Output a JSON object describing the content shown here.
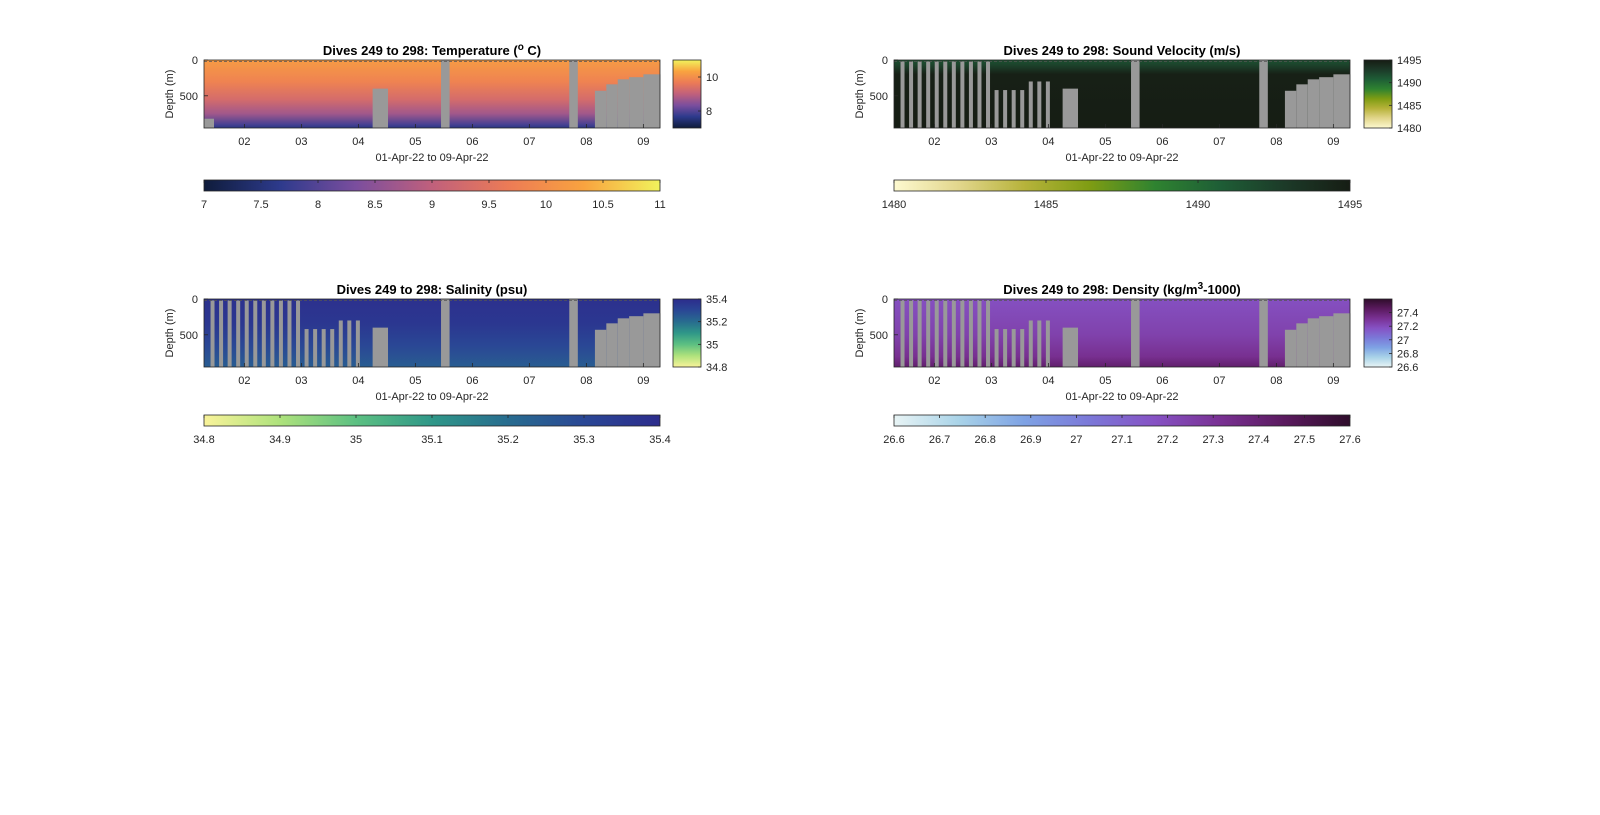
{
  "figure": {
    "background": "#ffffff",
    "mask_color": "#999999"
  },
  "chart_data": [
    {
      "id": "temperature",
      "type": "heatmap",
      "title": "Dives 249 to 298: Temperature (",
      "title_sup": "o",
      "title_tail": " C)",
      "xlabel": "01-Apr-22 to 09-Apr-22",
      "ylabel": "Depth (m)",
      "x_range": [
        "2022-04-01T07:00",
        "2022-04-09T07:00"
      ],
      "x_ticks": [
        "02",
        "03",
        "04",
        "05",
        "06",
        "07",
        "08",
        "09"
      ],
      "y_ticks": [
        0,
        500
      ],
      "ylim": [
        0,
        950
      ],
      "y_reversed": true,
      "colormap": [
        "#0f1c3b",
        "#2d3a8c",
        "#7b4e9e",
        "#c0607c",
        "#ec7b56",
        "#f9a33f",
        "#f1f35c"
      ],
      "clim": [
        7,
        11
      ],
      "colorbar_ticks": [
        "7",
        "7.5",
        "8",
        "8.5",
        "9",
        "9.5",
        "10",
        "10.5",
        "11"
      ],
      "side_colorbar_ticks": [
        "10",
        "8"
      ],
      "values_by_depth": [
        {
          "depth": 0,
          "value": 10.2
        },
        {
          "depth": 300,
          "value": 9.8
        },
        {
          "depth": 550,
          "value": 9.3
        },
        {
          "depth": 750,
          "value": 8.7
        },
        {
          "depth": 900,
          "value": 7.9
        },
        {
          "depth": 950,
          "value": 7.6
        }
      ]
    },
    {
      "id": "sound-velocity",
      "type": "heatmap",
      "title": "Dives 249 to 298: Sound Velocity (m/s)",
      "xlabel": "01-Apr-22 to 09-Apr-22",
      "ylabel": "Depth (m)",
      "x_range": [
        "2022-04-01T07:00",
        "2022-04-09T07:00"
      ],
      "x_ticks": [
        "02",
        "03",
        "04",
        "05",
        "06",
        "07",
        "08",
        "09"
      ],
      "y_ticks": [
        0,
        500
      ],
      "ylim": [
        0,
        950
      ],
      "y_reversed": true,
      "colormap": [
        "#fdf9d0",
        "#e2d68c",
        "#b7b33b",
        "#7f9d13",
        "#2f8330",
        "#1e5e36",
        "#1c3a28",
        "#161d14"
      ],
      "clim": [
        1480,
        1495
      ],
      "colorbar_ticks": [
        "1480",
        "1485",
        "1490",
        "1495"
      ],
      "side_colorbar_ticks": [
        "1495",
        "1490",
        "1485",
        "1480"
      ],
      "values_by_depth": [
        {
          "depth": 0,
          "value": 1491.5
        },
        {
          "depth": 80,
          "value": 1492.5
        },
        {
          "depth": 200,
          "value": 1494.8
        },
        {
          "depth": 950,
          "value": 1495
        }
      ]
    },
    {
      "id": "salinity",
      "type": "heatmap",
      "title": "Dives 249 to 298: Salinity (psu)",
      "xlabel": "01-Apr-22 to 09-Apr-22",
      "ylabel": "Depth (m)",
      "x_range": [
        "2022-04-01T07:00",
        "2022-04-09T07:00"
      ],
      "x_ticks": [
        "02",
        "03",
        "04",
        "05",
        "06",
        "07",
        "08",
        "09"
      ],
      "y_ticks": [
        0,
        500
      ],
      "ylim": [
        0,
        950
      ],
      "y_reversed": true,
      "colormap": [
        "#f9f39a",
        "#aee27c",
        "#5cc082",
        "#2f9788",
        "#286c8f",
        "#2a4795",
        "#2c2c8c"
      ],
      "clim": [
        34.8,
        35.4
      ],
      "colorbar_ticks": [
        "34.8",
        "34.9",
        "35",
        "35.1",
        "35.2",
        "35.3",
        "35.4"
      ],
      "side_colorbar_ticks": [
        "35.4",
        "35.2",
        "35",
        "34.8"
      ],
      "values_by_depth": [
        {
          "depth": 0,
          "value": 35.38
        },
        {
          "depth": 350,
          "value": 35.36
        },
        {
          "depth": 650,
          "value": 35.3
        },
        {
          "depth": 950,
          "value": 35.24
        }
      ]
    },
    {
      "id": "density",
      "type": "heatmap",
      "title": "Dives 249 to 298: Density (kg/m",
      "title_sup": "3",
      "title_tail": "-1000)",
      "xlabel": "01-Apr-22 to 09-Apr-22",
      "ylabel": "Depth (m)",
      "x_range": [
        "2022-04-01T07:00",
        "2022-04-09T07:00"
      ],
      "x_ticks": [
        "02",
        "03",
        "04",
        "05",
        "06",
        "07",
        "08",
        "09"
      ],
      "y_ticks": [
        0,
        500
      ],
      "ylim": [
        0,
        950
      ],
      "y_reversed": true,
      "colormap": [
        "#e8f4f5",
        "#a9d3e8",
        "#7ea2e4",
        "#7b78d8",
        "#8652c4",
        "#793193",
        "#5a1a5e",
        "#2f0d2b"
      ],
      "clim": [
        26.6,
        27.6
      ],
      "colorbar_ticks": [
        "26.6",
        "26.7",
        "26.8",
        "26.9",
        "27",
        "27.1",
        "27.2",
        "27.3",
        "27.4",
        "27.5",
        "27.6"
      ],
      "side_colorbar_ticks": [
        "27.4",
        "27.2",
        "27",
        "26.8",
        "26.6"
      ],
      "values_by_depth": [
        {
          "depth": 0,
          "value": 27.18
        },
        {
          "depth": 500,
          "value": 27.24
        },
        {
          "depth": 800,
          "value": 27.32
        },
        {
          "depth": 950,
          "value": 27.42
        }
      ]
    }
  ],
  "data_gaps": {
    "unit": "day of April 2022 (start, end) with depth range in m that is missing",
    "full_columns": [
      {
        "start": 5.45,
        "end": 5.6
      },
      {
        "start": 7.7,
        "end": 7.85
      }
    ],
    "profile_bottom": [
      {
        "from": 4.25,
        "to": 4.52,
        "max_depth": 400
      },
      {
        "from": 8.15,
        "to": 8.35,
        "max_depth": 430
      },
      {
        "from": 8.35,
        "to": 8.55,
        "max_depth": 340
      },
      {
        "from": 8.55,
        "to": 8.75,
        "max_depth": 270
      },
      {
        "from": 8.75,
        "to": 9.0,
        "max_depth": 240
      },
      {
        "from": 9.0,
        "to": 9.3,
        "max_depth": 200
      }
    ],
    "yo_stripes_days": [
      1.45,
      1.6,
      1.75,
      1.9,
      2.05,
      2.2,
      2.35,
      2.5,
      2.65,
      2.8,
      2.95,
      3.1,
      3.25,
      3.4,
      3.55,
      3.7,
      3.85,
      4.0
    ]
  }
}
